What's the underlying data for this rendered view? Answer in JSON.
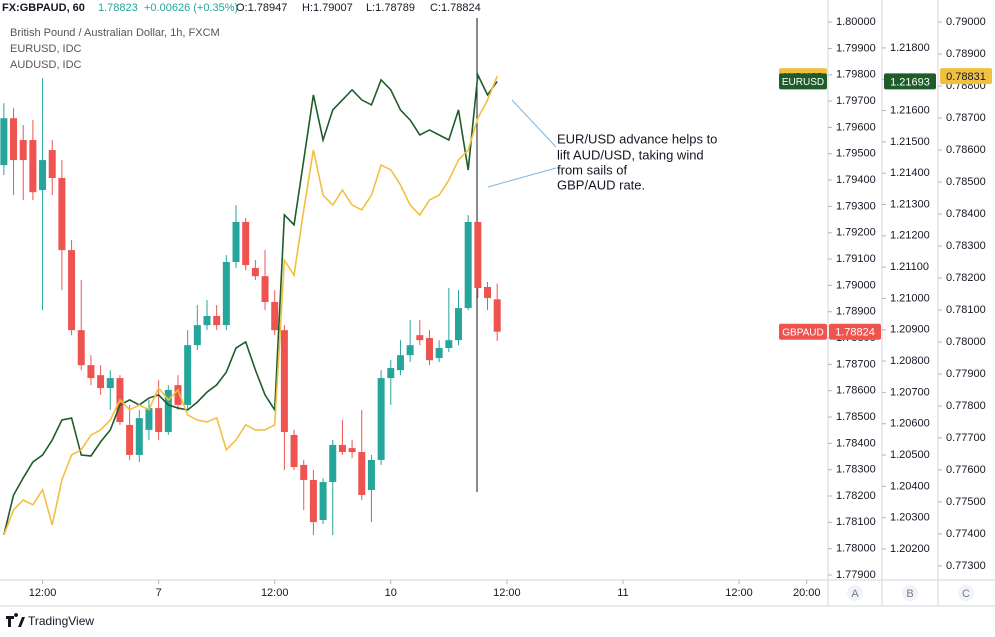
{
  "chart_data": {
    "type": "candlestick",
    "header": {
      "symbol": "FX:GBPAUD, 60",
      "price": "1.78823",
      "change": "+0.00626 (+0.35%)",
      "open": "O:1.78947",
      "high": "H:1.79007",
      "low": "L:1.78789",
      "close": "C:1.78824"
    },
    "legend": [
      "British Pound / Australian Dollar, 1h, FXCM",
      "EURUSD, IDC",
      "AUDUSD, IDC"
    ],
    "annotation": [
      "EUR/USD advance helps to",
      "lift AUD/USD, taking wind",
      "from sails of",
      "GBP/AUD rate."
    ],
    "axis_names": [
      "A",
      "B",
      "C"
    ],
    "brand": "TradingView",
    "x": [
      0,
      1,
      2,
      3,
      4,
      5,
      6,
      7,
      8,
      9,
      10,
      11,
      12,
      13,
      14,
      15,
      16,
      17,
      18,
      19,
      20,
      21,
      22,
      23,
      24,
      25,
      26,
      27,
      28,
      29,
      30,
      31,
      32,
      33,
      34,
      35,
      36,
      37,
      38,
      39,
      40,
      41,
      42,
      43,
      44,
      45,
      46,
      47,
      48,
      49,
      50,
      51
    ],
    "xlim": [
      -0.4,
      85.2
    ],
    "xticks": [
      {
        "value": 4,
        "label": "12:00"
      },
      {
        "value": 16,
        "label": "7"
      },
      {
        "value": 28,
        "label": "12:00"
      },
      {
        "value": 40,
        "label": "10"
      },
      {
        "value": 52,
        "label": "12:00"
      },
      {
        "value": 64,
        "label": "11"
      },
      {
        "value": 76,
        "label": "12:00"
      },
      {
        "value": 83,
        "label": "20:00"
      }
    ],
    "candles": {
      "name": "GBPAUD",
      "up_color": "#26a69a",
      "down_color": "#ef5350",
      "open": [
        1.79457,
        1.79635,
        1.79552,
        1.79552,
        1.79362,
        1.79514,
        1.79408,
        1.79134,
        1.7883,
        1.78697,
        1.78659,
        1.7861,
        1.78648,
        1.7847,
        1.78356,
        1.78451,
        1.78534,
        1.78443,
        1.78621,
        1.78546,
        1.78773,
        1.78849,
        1.78884,
        1.78849,
        1.79089,
        1.79241,
        1.79066,
        1.79035,
        1.78937,
        1.7883,
        1.78432,
        1.78318,
        1.78261,
        1.78109,
        1.78253,
        1.78394,
        1.78382,
        1.78367,
        1.78223,
        1.78337,
        1.78648,
        1.78678,
        1.78735,
        1.78811,
        1.788,
        1.78724,
        1.78762,
        1.78792,
        1.78914,
        1.79241,
        1.78994,
        1.78947
      ],
      "high": [
        1.79692,
        1.79673,
        1.79609,
        1.79628,
        1.79787,
        1.79552,
        1.79476,
        1.79172,
        1.7902,
        1.78735,
        1.78697,
        1.78678,
        1.78659,
        1.78546,
        1.78527,
        1.78565,
        1.7864,
        1.78621,
        1.78659,
        1.7883,
        1.78925,
        1.78944,
        1.78925,
        1.79115,
        1.79305,
        1.79256,
        1.79096,
        1.79134,
        1.78982,
        1.78849,
        1.78451,
        1.78337,
        1.78299,
        1.78268,
        1.78413,
        1.78489,
        1.78413,
        1.78527,
        1.78356,
        1.78678,
        1.78716,
        1.78792,
        1.78868,
        1.78868,
        1.7883,
        1.78792,
        1.7899,
        1.78982,
        1.79267,
        1.79241,
        1.79013,
        1.79007
      ],
      "low": [
        1.79419,
        1.79343,
        1.79324,
        1.79324,
        1.78906,
        1.79343,
        1.78982,
        1.78811,
        1.78678,
        1.78621,
        1.78584,
        1.78527,
        1.7847,
        1.78337,
        1.78329,
        1.78413,
        1.78413,
        1.78432,
        1.78527,
        1.78527,
        1.78754,
        1.7883,
        1.7883,
        1.7883,
        1.79066,
        1.79058,
        1.7902,
        1.78906,
        1.78811,
        1.78299,
        1.78299,
        1.78147,
        1.78052,
        1.78094,
        1.78052,
        1.78356,
        1.78344,
        1.78185,
        1.78101,
        1.78318,
        1.78546,
        1.78659,
        1.78709,
        1.78773,
        1.78697,
        1.78709,
        1.78747,
        1.78773,
        1.78906,
        1.78952,
        1.78906,
        1.78789
      ],
      "close": [
        1.79635,
        1.79476,
        1.79476,
        1.79354,
        1.79476,
        1.79408,
        1.79134,
        1.7883,
        1.78697,
        1.78648,
        1.7861,
        1.78648,
        1.78481,
        1.78356,
        1.78496,
        1.78534,
        1.78443,
        1.78603,
        1.78546,
        1.78773,
        1.78849,
        1.78884,
        1.78849,
        1.79089,
        1.79241,
        1.79077,
        1.79035,
        1.78937,
        1.7883,
        1.78443,
        1.7831,
        1.78261,
        1.78101,
        1.78253,
        1.78394,
        1.78367,
        1.78367,
        1.78204,
        1.78337,
        1.78648,
        1.78686,
        1.78735,
        1.78773,
        1.78792,
        1.78716,
        1.78762,
        1.78792,
        1.78914,
        1.79241,
        1.7899,
        1.78952,
        1.78824
      ]
    },
    "series": [
      {
        "name": "EURUSD",
        "axis": "y2",
        "color": "#1e5c2a",
        "values": [
          1.20245,
          1.20372,
          1.20427,
          1.20478,
          1.205,
          1.20548,
          1.20612,
          1.20618,
          1.205,
          1.20497,
          1.20542,
          1.2058,
          1.2066,
          1.20676,
          1.2066,
          1.20682,
          1.20692,
          1.2066,
          1.2065,
          1.20644,
          1.20669,
          1.20701,
          1.20724,
          1.20765,
          1.20842,
          1.20861,
          1.20772,
          1.20692,
          1.20644,
          1.21267,
          1.21235,
          1.21442,
          1.2165,
          1.21506,
          1.21602,
          1.21634,
          1.21666,
          1.21634,
          1.21618,
          1.21698,
          1.21666,
          1.21602,
          1.2157,
          1.21522,
          1.21538,
          1.21522,
          1.21506,
          1.21602,
          1.2141,
          1.21714,
          1.2165,
          1.21693
        ]
      },
      {
        "name": "AUDUSD",
        "axis": "y3",
        "color": "#f2c040",
        "values": [
          0.77397,
          0.77475,
          0.77506,
          0.77491,
          0.77538,
          0.77428,
          0.77569,
          0.77647,
          0.77663,
          0.77709,
          0.77725,
          0.77756,
          0.77819,
          0.77788,
          0.77803,
          0.77788,
          0.77856,
          0.77819,
          0.7785,
          0.77772,
          0.77756,
          0.7775,
          0.77763,
          0.77663,
          0.77694,
          0.77741,
          0.77725,
          0.77725,
          0.77741,
          0.78256,
          0.78209,
          0.78413,
          0.786,
          0.78459,
          0.78428,
          0.78475,
          0.78428,
          0.78413,
          0.78459,
          0.78553,
          0.78538,
          0.78491,
          0.78428,
          0.78397,
          0.78444,
          0.78459,
          0.78506,
          0.78569,
          0.786,
          0.787,
          0.78756,
          0.78831
        ]
      }
    ],
    "ylim": [
      1.77881,
      1.80084
    ],
    "yticks": [
      {
        "value": 1.779,
        "label": "1.77900"
      },
      {
        "value": 1.78,
        "label": "1.78000"
      },
      {
        "value": 1.781,
        "label": "1.78100"
      },
      {
        "value": 1.782,
        "label": "1.78200"
      },
      {
        "value": 1.783,
        "label": "1.78300"
      },
      {
        "value": 1.784,
        "label": "1.78400"
      },
      {
        "value": 1.785,
        "label": "1.78500"
      },
      {
        "value": 1.786,
        "label": "1.78600"
      },
      {
        "value": 1.787,
        "label": "1.78700"
      },
      {
        "value": 1.788,
        "label": "1.78800"
      },
      {
        "value": 1.789,
        "label": "1.78900"
      },
      {
        "value": 1.79,
        "label": "1.79000"
      },
      {
        "value": 1.791,
        "label": "1.79100"
      },
      {
        "value": 1.792,
        "label": "1.79200"
      },
      {
        "value": 1.793,
        "label": "1.79300"
      },
      {
        "value": 1.794,
        "label": "1.79400"
      },
      {
        "value": 1.795,
        "label": "1.79500"
      },
      {
        "value": 1.796,
        "label": "1.79600"
      },
      {
        "value": 1.797,
        "label": "1.79700"
      },
      {
        "value": 1.798,
        "label": "1.79800"
      },
      {
        "value": 1.799,
        "label": "1.79900"
      },
      {
        "value": 1.8,
        "label": "1.80000"
      }
    ],
    "y2lim": [
      1.20101,
      1.21953
    ],
    "y2ticks": [
      {
        "value": 1.202,
        "label": "1.20200"
      },
      {
        "value": 1.203,
        "label": "1.20300"
      },
      {
        "value": 1.204,
        "label": "1.20400"
      },
      {
        "value": 1.205,
        "label": "1.20500"
      },
      {
        "value": 1.206,
        "label": "1.20600"
      },
      {
        "value": 1.207,
        "label": "1.20700"
      },
      {
        "value": 1.208,
        "label": "1.20800"
      },
      {
        "value": 1.209,
        "label": "1.20900"
      },
      {
        "value": 1.21,
        "label": "1.21000"
      },
      {
        "value": 1.211,
        "label": "1.21100"
      },
      {
        "value": 1.212,
        "label": "1.21200"
      },
      {
        "value": 1.213,
        "label": "1.21300"
      },
      {
        "value": 1.214,
        "label": "1.21400"
      },
      {
        "value": 1.215,
        "label": "1.21500"
      },
      {
        "value": 1.216,
        "label": "1.21600"
      },
      {
        "value": 1.217,
        "label": "1.21700"
      },
      {
        "value": 1.218,
        "label": "1.21800"
      }
    ],
    "y3lim": [
      0.77256,
      0.79069
    ],
    "y3ticks": [
      {
        "value": 0.773,
        "label": "0.77300"
      },
      {
        "value": 0.774,
        "label": "0.77400"
      },
      {
        "value": 0.775,
        "label": "0.77500"
      },
      {
        "value": 0.776,
        "label": "0.77600"
      },
      {
        "value": 0.777,
        "label": "0.77700"
      },
      {
        "value": 0.778,
        "label": "0.77800"
      },
      {
        "value": 0.779,
        "label": "0.77900"
      },
      {
        "value": 0.78,
        "label": "0.78000"
      },
      {
        "value": 0.781,
        "label": "0.78100"
      },
      {
        "value": 0.782,
        "label": "0.78200"
      },
      {
        "value": 0.783,
        "label": "0.78300"
      },
      {
        "value": 0.784,
        "label": "0.78400"
      },
      {
        "value": 0.785,
        "label": "0.78500"
      },
      {
        "value": 0.786,
        "label": "0.78600"
      },
      {
        "value": 0.787,
        "label": "0.78700"
      },
      {
        "value": 0.788,
        "label": "0.78800"
      },
      {
        "value": 0.789,
        "label": "0.78900"
      },
      {
        "value": 0.79,
        "label": "0.79000"
      }
    ]
  }
}
